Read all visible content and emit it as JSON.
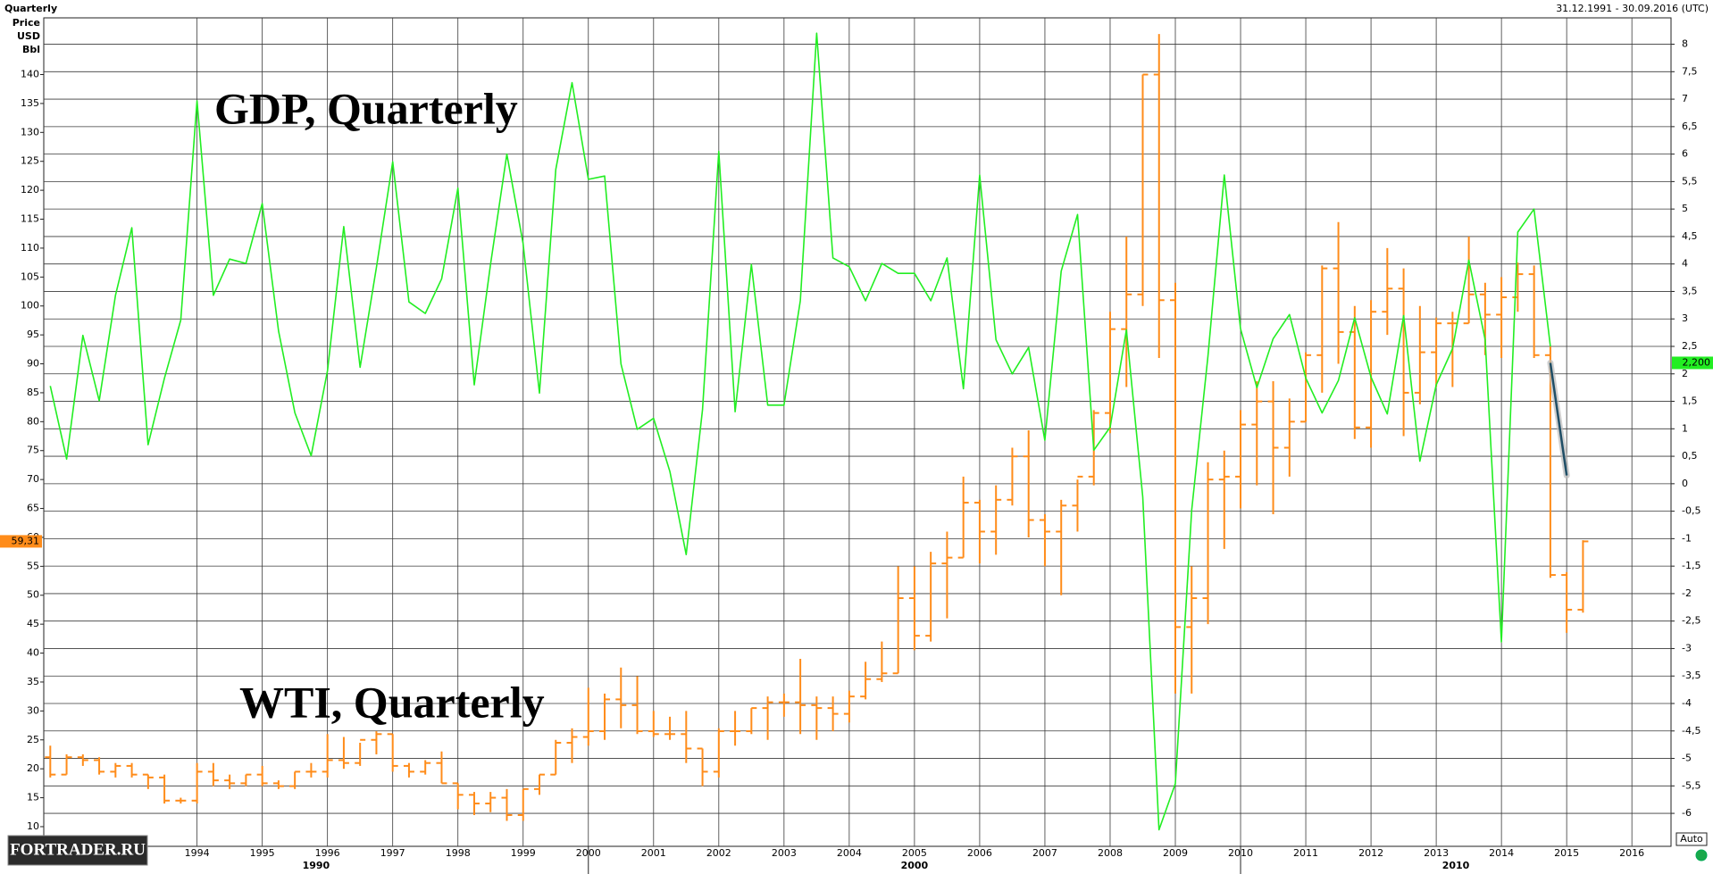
{
  "chart_data": {
    "type": "ohlc",
    "title": "Quarterly",
    "subtitle": "31.12.1991 - 30.09.2016 (UTC)",
    "ylabel_lines": [
      "Price",
      "USD",
      "Bbl"
    ],
    "logo": "FORTRADER.RU",
    "button": "Auto",
    "grid": true,
    "xlim": [
      1991.65,
      2016.6
    ],
    "xticks": [
      1994,
      1995,
      1996,
      1997,
      1998,
      1999,
      2000,
      2001,
      2002,
      2003,
      2004,
      2005,
      2006,
      2007,
      2008,
      2009,
      2010,
      2011,
      2012,
      2013,
      2014,
      2015,
      2016
    ],
    "xticks2": [
      1990,
      2000,
      2010
    ],
    "ylim": [
      6.6,
      149.8
    ],
    "yticks": [
      10,
      15,
      20,
      25,
      30,
      35,
      40,
      45,
      50,
      55,
      60,
      65,
      70,
      75,
      80,
      85,
      90,
      95,
      100,
      105,
      110,
      115,
      120,
      125,
      130,
      135,
      140
    ],
    "y2lim": [
      -6.6,
      8.48
    ],
    "y2ticks": [
      8,
      {
        "value": 7.5,
        "label": "7,5"
      },
      7,
      {
        "value": 6.5,
        "label": "6,5"
      },
      6,
      {
        "value": 5.5,
        "label": "5,5"
      },
      5,
      {
        "value": 4.5,
        "label": "4,5"
      },
      4,
      {
        "value": 3.5,
        "label": "3,5"
      },
      3,
      {
        "value": 2.5,
        "label": "2,5"
      },
      2,
      {
        "value": 1.5,
        "label": "1,5"
      },
      1,
      {
        "value": 0.5,
        "label": "0,5"
      },
      0,
      {
        "value": -0.5,
        "label": "-0,5"
      },
      -1,
      {
        "value": -1.5,
        "label": "-1,5"
      },
      -2,
      {
        "value": -2.5,
        "label": "-2,5"
      },
      -3,
      {
        "value": -3.5,
        "label": "-3,5"
      },
      -4,
      {
        "value": -4.5,
        "label": "-4,5"
      },
      -5,
      {
        "value": -5.5,
        "label": "-5,5"
      },
      -6
    ],
    "x": [
      1991.75,
      1992,
      1992.25,
      1992.5,
      1992.75,
      1993,
      1993.25,
      1993.5,
      1993.75,
      1994,
      1994.25,
      1994.5,
      1994.75,
      1995,
      1995.25,
      1995.5,
      1995.75,
      1996,
      1996.25,
      1996.5,
      1996.75,
      1997,
      1997.25,
      1997.5,
      1997.75,
      1998,
      1998.25,
      1998.5,
      1998.75,
      1999,
      1999.25,
      1999.5,
      1999.75,
      2000,
      2000.25,
      2000.5,
      2000.75,
      2001,
      2001.25,
      2001.5,
      2001.75,
      2002,
      2002.25,
      2002.5,
      2002.75,
      2003,
      2003.25,
      2003.5,
      2003.75,
      2004,
      2004.25,
      2004.5,
      2004.75,
      2005,
      2005.25,
      2005.5,
      2005.75,
      2006,
      2006.25,
      2006.5,
      2006.75,
      2007,
      2007.25,
      2007.5,
      2007.75,
      2008,
      2008.25,
      2008.5,
      2008.75,
      2009,
      2009.25,
      2009.5,
      2009.75,
      2010,
      2010.25,
      2010.5,
      2010.75,
      2011,
      2011.25,
      2011.5,
      2011.75,
      2012,
      2012.25,
      2012.5,
      2012.75,
      2013,
      2013.25,
      2013.5,
      2013.75,
      2014,
      2014.25,
      2014.5,
      2014.75,
      2015,
      2015.25
    ],
    "series": [
      {
        "name": "WTI, Quarterly",
        "type": "ohlc",
        "color": "#ff8c1a",
        "last_label": "59,31",
        "open": [
          22,
          19,
          22,
          21.5,
          19.5,
          20.5,
          19,
          18.5,
          14.5,
          14.5,
          19.5,
          18,
          17.5,
          19,
          17.5,
          17,
          19.5,
          19.5,
          21.5,
          21,
          25,
          26,
          20.5,
          19.5,
          21,
          17.5,
          15.5,
          14,
          15,
          12,
          16.5,
          19,
          24.5,
          25.5,
          26.5,
          32,
          31,
          26.5,
          26,
          26,
          23.5,
          19.5,
          26.5,
          26.5,
          30.5,
          31.5,
          31.5,
          31,
          30.5,
          29.5,
          32.5,
          35.5,
          36.5,
          49.5,
          43,
          55.5,
          56.5,
          66,
          61,
          66.5,
          74,
          63,
          61,
          65.5,
          70.5,
          81.5,
          96,
          102,
          140,
          101,
          44.5,
          49.5,
          70,
          70.5,
          79.5,
          83.5,
          75.5,
          80,
          91.5,
          106.5,
          95.5,
          79,
          99,
          103,
          85,
          92,
          97,
          97,
          102,
          98.5,
          101.5,
          105.5,
          91.5,
          53.5,
          47.5
        ],
        "high": [
          24,
          22.5,
          22.5,
          22,
          21,
          21,
          19,
          19,
          15,
          21,
          21,
          19,
          19,
          20.5,
          18,
          19.5,
          21,
          26,
          25.5,
          24.5,
          26.5,
          26,
          21,
          21.5,
          23,
          17.5,
          16,
          16,
          16.5,
          16.5,
          19,
          25,
          27,
          34,
          33,
          37.5,
          36,
          30,
          29,
          30,
          23.5,
          27,
          30,
          30.5,
          32.5,
          33,
          39,
          32.5,
          32.5,
          33.5,
          38.5,
          42,
          55,
          55,
          57.5,
          61,
          70.5,
          66.5,
          69,
          75.5,
          78.5,
          64,
          66.5,
          70,
          82,
          99,
          112,
          140,
          147,
          104,
          55,
          73,
          75,
          82,
          87,
          87,
          84,
          92,
          107,
          114.5,
          100,
          101,
          110,
          106.5,
          100,
          98,
          99,
          112,
          104,
          105,
          107.5,
          107,
          93,
          54,
          59.5
        ],
        "low": [
          18.5,
          19,
          20.5,
          19,
          18.5,
          18.5,
          16.5,
          14,
          14,
          14,
          17,
          16.5,
          17,
          17,
          16.5,
          16.5,
          18.5,
          18.5,
          20,
          20.5,
          22.5,
          19.5,
          18.5,
          19,
          17.5,
          13,
          12,
          12.5,
          11,
          11,
          15.5,
          19,
          21,
          24,
          25,
          27,
          26,
          25.5,
          25,
          21,
          17,
          18.5,
          24,
          26,
          25,
          29,
          26,
          25,
          26.5,
          28,
          32,
          35,
          36.5,
          40.5,
          42,
          46,
          56.5,
          55.5,
          57,
          65.5,
          60,
          55,
          50,
          61,
          69,
          78,
          86,
          100,
          91,
          33,
          33,
          45,
          58,
          65,
          69,
          64,
          70.5,
          80,
          85,
          90,
          77,
          75.5,
          95,
          77.5,
          83,
          86,
          86,
          97,
          91.5,
          91,
          99,
          91,
          53,
          43.5,
          47
        ],
        "close": [
          19,
          22,
          21.5,
          19.5,
          20.5,
          19,
          18.5,
          14.5,
          14.5,
          19.5,
          18,
          17.5,
          19,
          17.5,
          17,
          19.5,
          19.5,
          21.5,
          21,
          25,
          26,
          20.5,
          19.5,
          21,
          17.5,
          15.5,
          14,
          15,
          12,
          16.5,
          19,
          24.5,
          25.5,
          26.5,
          32,
          31,
          26.5,
          26,
          26,
          23.5,
          19.5,
          26.5,
          26.5,
          30.5,
          31.5,
          31.5,
          31,
          30.5,
          29.5,
          32.5,
          35.5,
          36.5,
          49.5,
          43,
          55.5,
          56.5,
          66,
          61,
          66.5,
          74,
          63,
          61,
          65.5,
          70.5,
          81.5,
          96,
          102,
          140,
          101,
          44.5,
          49.5,
          70,
          70.5,
          79.5,
          83.5,
          75.5,
          80,
          91.5,
          106.5,
          95.5,
          79,
          99,
          103,
          85,
          92,
          97,
          97,
          102,
          98.5,
          101.5,
          105.5,
          91.5,
          53.5,
          47.5,
          59.31
        ]
      },
      {
        "name": "GDP, Quarterly",
        "type": "line",
        "axis": "y2",
        "color": "#22ee22",
        "values": [
          1.78,
          0.45,
          2.7,
          1.51,
          3.43,
          4.66,
          0.71,
          1.92,
          2.98,
          6.97,
          3.43,
          4.09,
          4.01,
          5.1,
          2.78,
          1.29,
          0.51,
          2.06,
          4.68,
          2.12,
          3.93,
          5.86,
          3.31,
          3.1,
          3.73,
          5.38,
          1.8,
          3.99,
          6.0,
          4.37,
          1.65,
          5.72,
          7.3,
          5.54,
          5.6,
          2.18,
          0.99,
          1.19,
          0.22,
          -1.29,
          1.35,
          6.05,
          1.31,
          3.99,
          1.43,
          1.43,
          3.33,
          8.2,
          4.11,
          3.95,
          3.33,
          4.01,
          3.83,
          3.83,
          3.33,
          4.11,
          1.73,
          5.62,
          2.62,
          2.0,
          2.48,
          0.79,
          3.87,
          4.9,
          0.61,
          1.03,
          2.8,
          -0.24,
          -6.3,
          -5.46,
          -0.48,
          2.32,
          5.62,
          2.82,
          1.75,
          2.64,
          3.08,
          1.92,
          1.29,
          1.88,
          3.02,
          1.94,
          1.27,
          3.06,
          0.41,
          1.8,
          2.46,
          4.07,
          2.62,
          -2.88,
          4.58,
          5.0,
          2.5,
          null,
          null
        ]
      },
      {
        "type": "line",
        "axis": "y2",
        "color": "#1f4e66",
        "x": [
          2014.75,
          2015.0
        ],
        "values": [
          2.2,
          0.15
        ],
        "value_labels": [
          "2,200",
          null
        ]
      }
    ]
  }
}
